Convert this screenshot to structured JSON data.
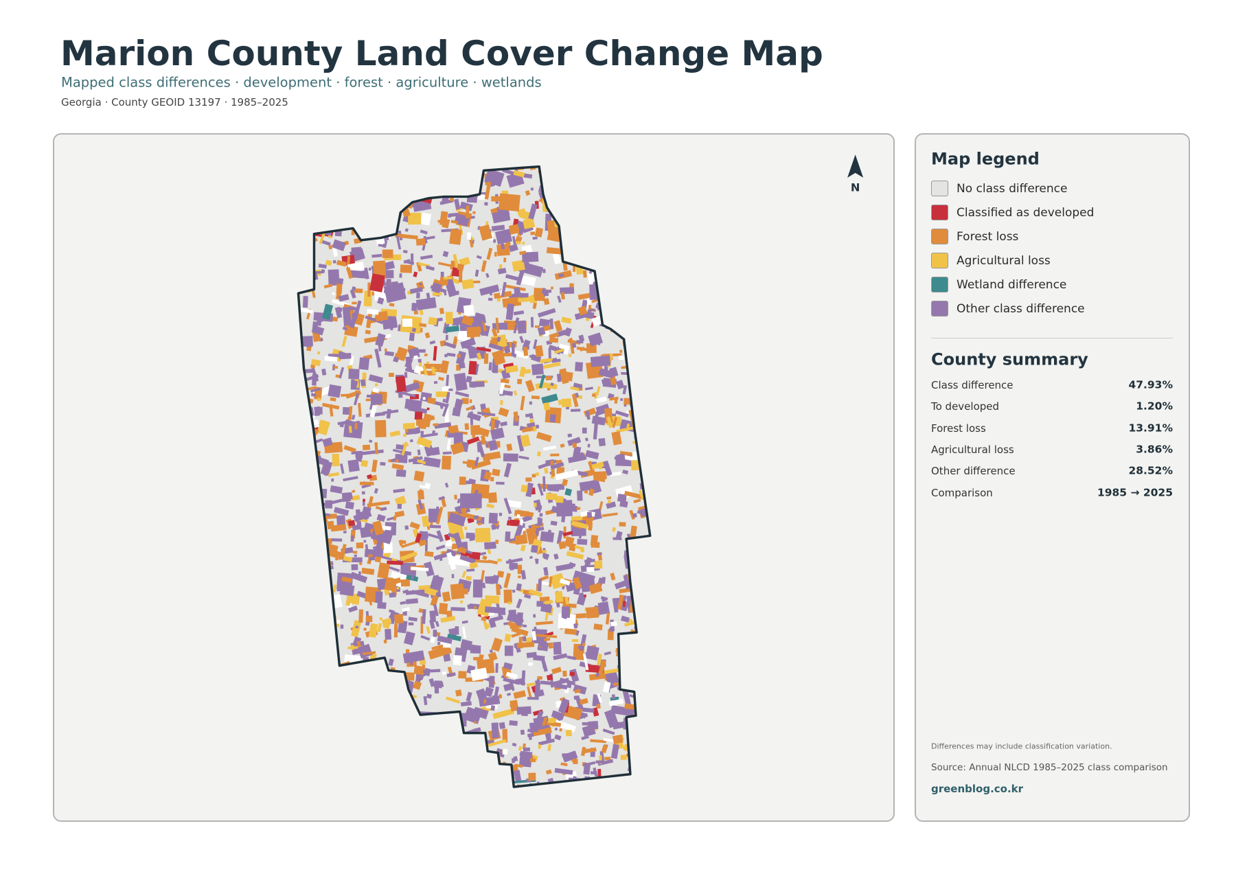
{
  "header": {
    "title": "Marion County Land Cover Change Map",
    "subtitle": "Mapped class differences · development · forest · agriculture · wetlands",
    "meta": "Georgia · County GEOID 13197 · 1985–2025"
  },
  "map": {
    "north_label": "N"
  },
  "legend": {
    "title": "Map legend",
    "items": [
      {
        "label": "No class difference",
        "color": "#e4e4e2"
      },
      {
        "label": "Classified as developed",
        "color": "#c8303b"
      },
      {
        "label": "Forest loss",
        "color": "#e08c3c"
      },
      {
        "label": "Agricultural loss",
        "color": "#f0c24a"
      },
      {
        "label": "Wetland difference",
        "color": "#3e8a8e"
      },
      {
        "label": "Other class difference",
        "color": "#9478ad"
      }
    ]
  },
  "summary": {
    "title": "County summary",
    "rows": [
      {
        "label": "Class difference",
        "value": "47.93%"
      },
      {
        "label": "To developed",
        "value": "1.20%"
      },
      {
        "label": "Forest loss",
        "value": "13.91%"
      },
      {
        "label": "Agricultural loss",
        "value": "3.86%"
      },
      {
        "label": "Other difference",
        "value": "28.52%"
      },
      {
        "label": "Comparison",
        "value": "1985 → 2025"
      }
    ]
  },
  "footer": {
    "note": "Differences may include classification variation.",
    "source": "Source: Annual NLCD 1985–2025 class comparison",
    "link": "greenblog.co.kr"
  }
}
